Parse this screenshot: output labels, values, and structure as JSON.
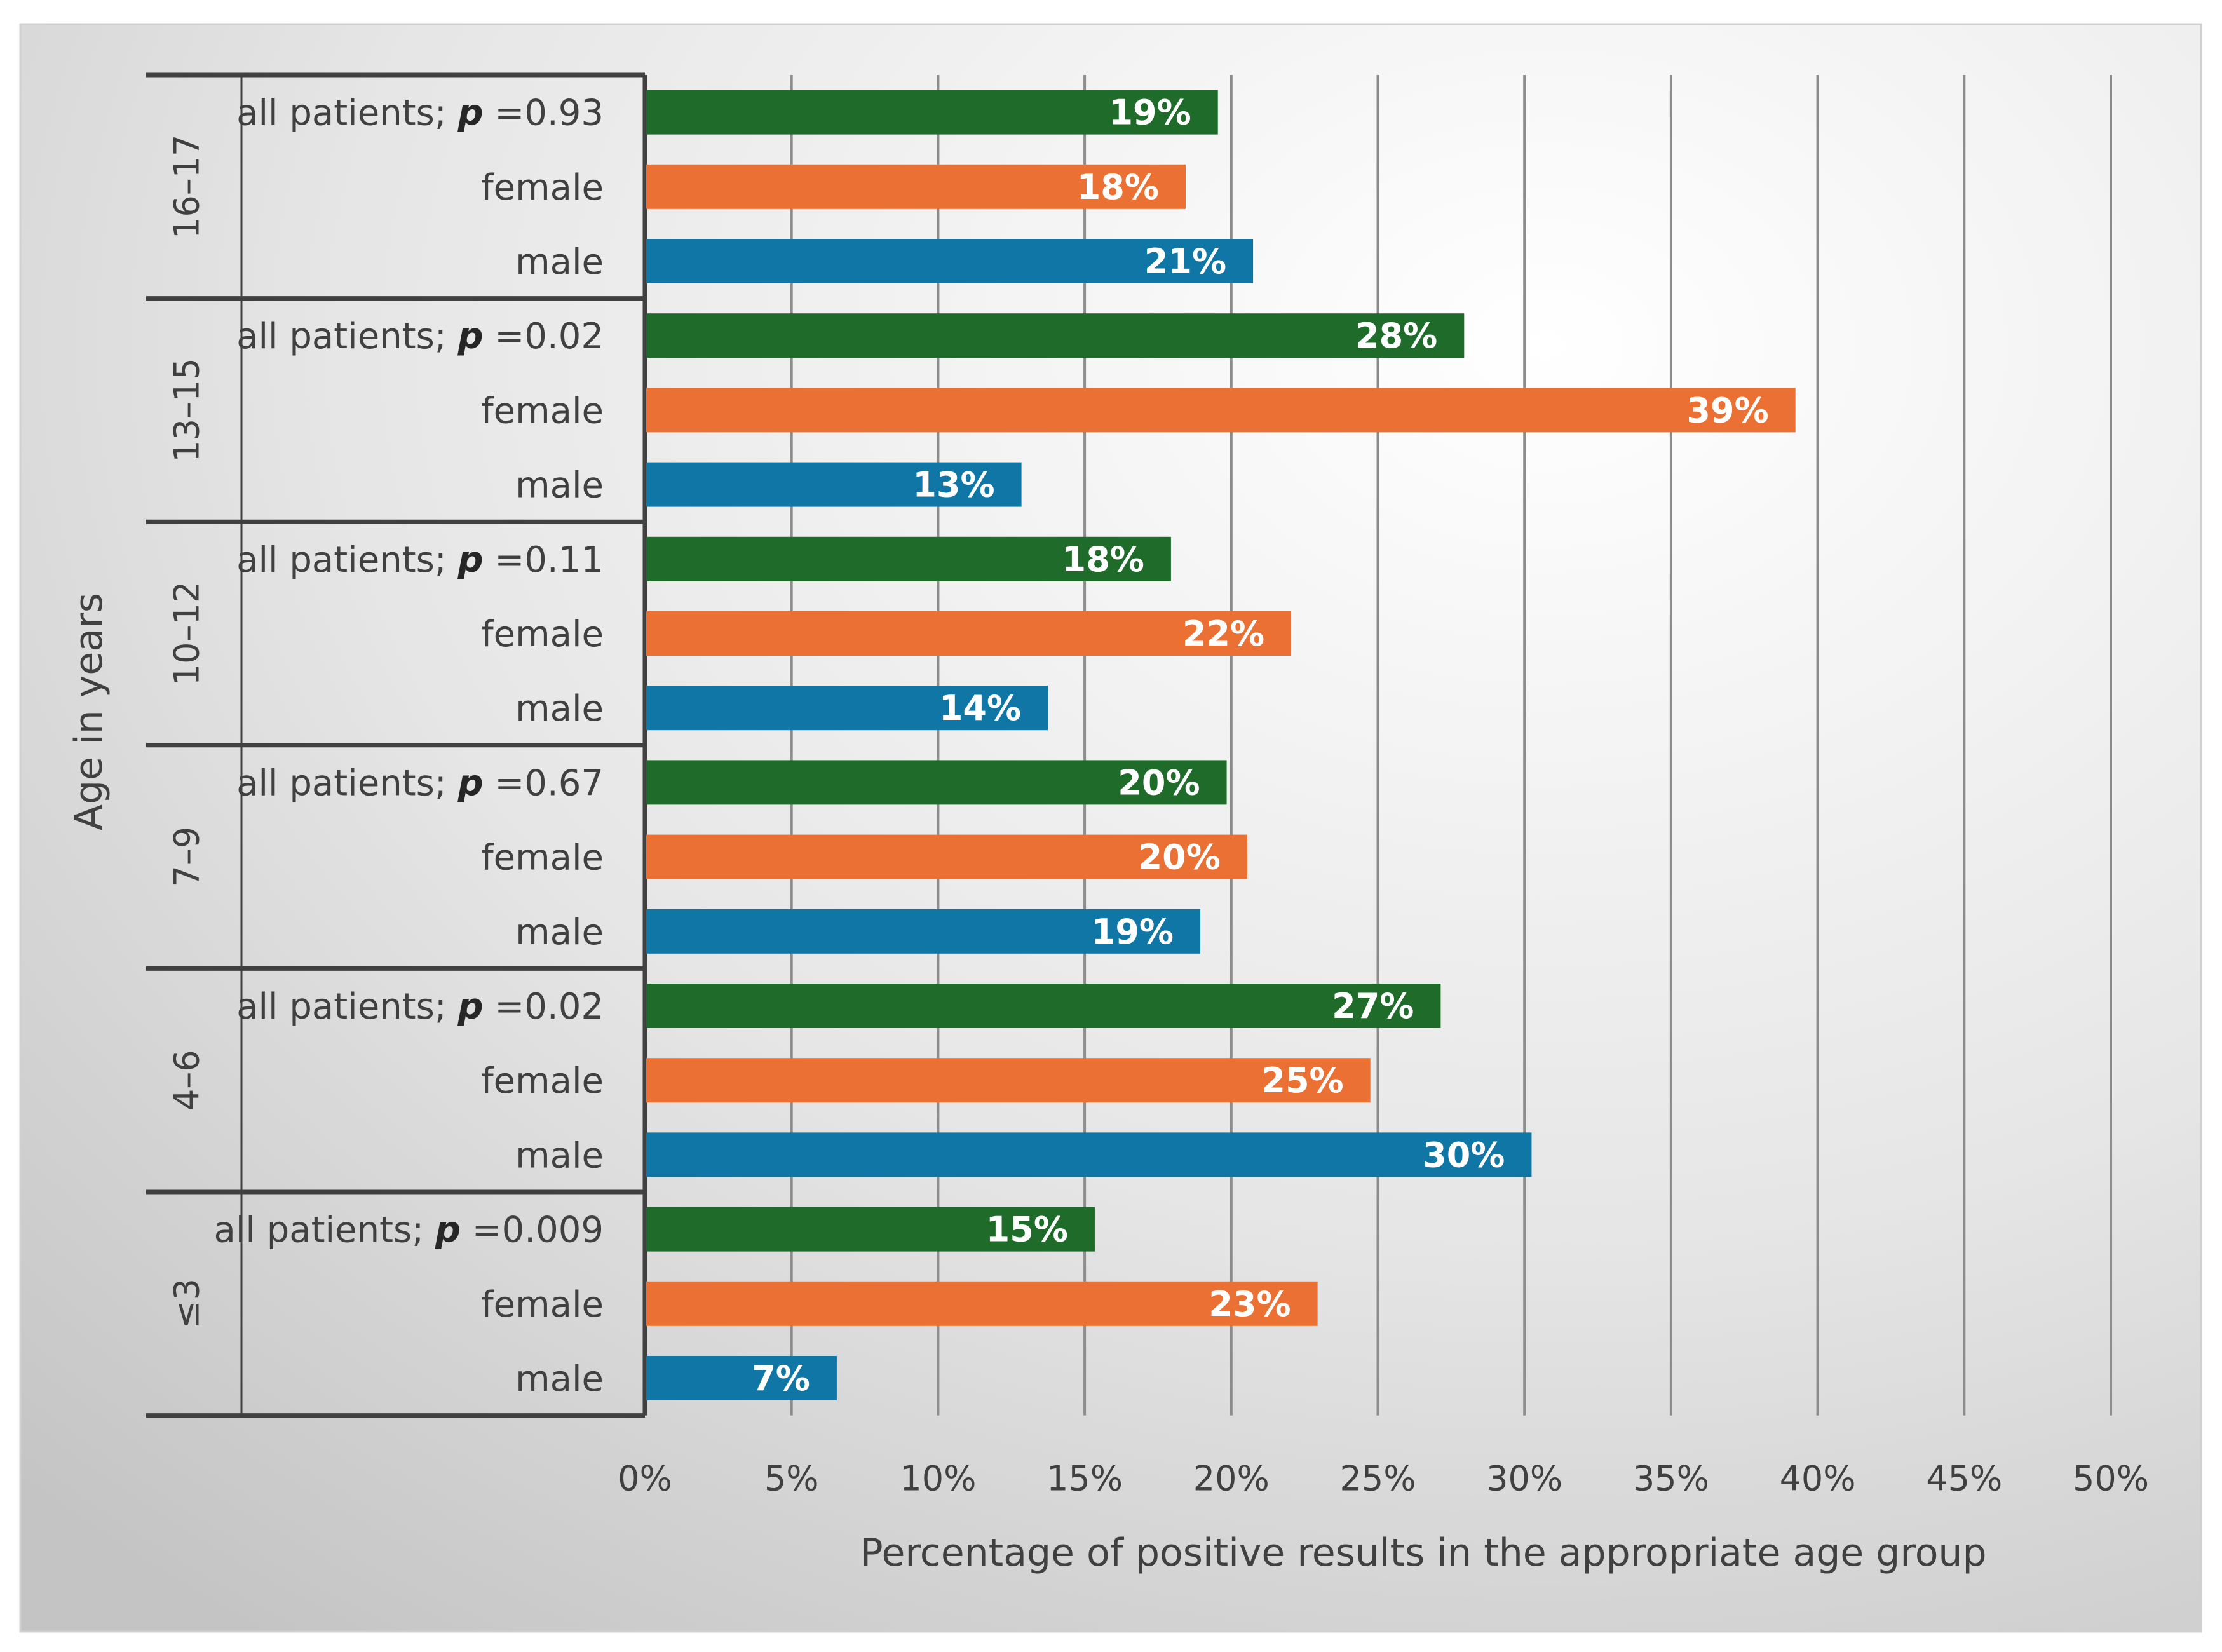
{
  "chart_data": {
    "type": "bar",
    "orientation": "horizontal",
    "xlabel": "Percentage of positive results in the appropriate age group",
    "ylabel": "Age in years",
    "xlim": [
      0,
      50
    ],
    "x_ticks": [
      "0%",
      "5%",
      "10%",
      "15%",
      "20%",
      "25%",
      "30%",
      "35%",
      "40%",
      "45%",
      "50%"
    ],
    "grid": true,
    "colors": {
      "all_patients": "#1e6b2a",
      "female": "#ea7133",
      "male": "#0f76a5",
      "grid": "#8c8c8c",
      "frame": "#404040"
    },
    "groups": [
      {
        "age": "16–17",
        "rows": [
          {
            "label": "all patients; ",
            "p_label": "p",
            "p_value": " =0.93",
            "series": "all_patients",
            "value": 19.5,
            "data_label": "19%"
          },
          {
            "label": "female",
            "series": "female",
            "value": 18.4,
            "data_label": "18%"
          },
          {
            "label": "male",
            "series": "male",
            "value": 20.7,
            "data_label": "21%"
          }
        ]
      },
      {
        "age": "13–15",
        "rows": [
          {
            "label": "all patients; ",
            "p_label": "p",
            "p_value": " =0.02",
            "series": "all_patients",
            "value": 27.9,
            "data_label": "28%"
          },
          {
            "label": "female",
            "series": "female",
            "value": 39.2,
            "data_label": "39%"
          },
          {
            "label": "male",
            "series": "male",
            "value": 12.8,
            "data_label": "13%"
          }
        ]
      },
      {
        "age": "10–12",
        "rows": [
          {
            "label": "all patients; ",
            "p_label": "p",
            "p_value": " =0.11",
            "series": "all_patients",
            "value": 17.9,
            "data_label": "18%"
          },
          {
            "label": "female",
            "series": "female",
            "value": 22.0,
            "data_label": "22%"
          },
          {
            "label": "male",
            "series": "male",
            "value": 13.7,
            "data_label": "14%"
          }
        ]
      },
      {
        "age": "7–9",
        "rows": [
          {
            "label": "all patients; ",
            "p_label": "p",
            "p_value": " =0.67",
            "series": "all_patients",
            "value": 19.8,
            "data_label": "20%"
          },
          {
            "label": "female",
            "series": "female",
            "value": 20.5,
            "data_label": "20%"
          },
          {
            "label": "male",
            "series": "male",
            "value": 18.9,
            "data_label": "19%"
          }
        ]
      },
      {
        "age": "4–6",
        "rows": [
          {
            "label": "all patients; ",
            "p_label": "p",
            "p_value": " =0.02",
            "series": "all_patients",
            "value": 27.1,
            "data_label": "27%"
          },
          {
            "label": "female",
            "series": "female",
            "value": 24.7,
            "data_label": "25%"
          },
          {
            "label": "male",
            "series": "male",
            "value": 30.2,
            "data_label": "30%"
          }
        ]
      },
      {
        "age": "≤3",
        "rows": [
          {
            "label": "all patients; ",
            "p_label": "p",
            "p_value": " =0.009",
            "series": "all_patients",
            "value": 15.3,
            "data_label": "15%"
          },
          {
            "label": "female",
            "series": "female",
            "value": 22.9,
            "data_label": "23%"
          },
          {
            "label": "male",
            "series": "male",
            "value": 6.5,
            "data_label": "7%"
          }
        ]
      }
    ]
  }
}
